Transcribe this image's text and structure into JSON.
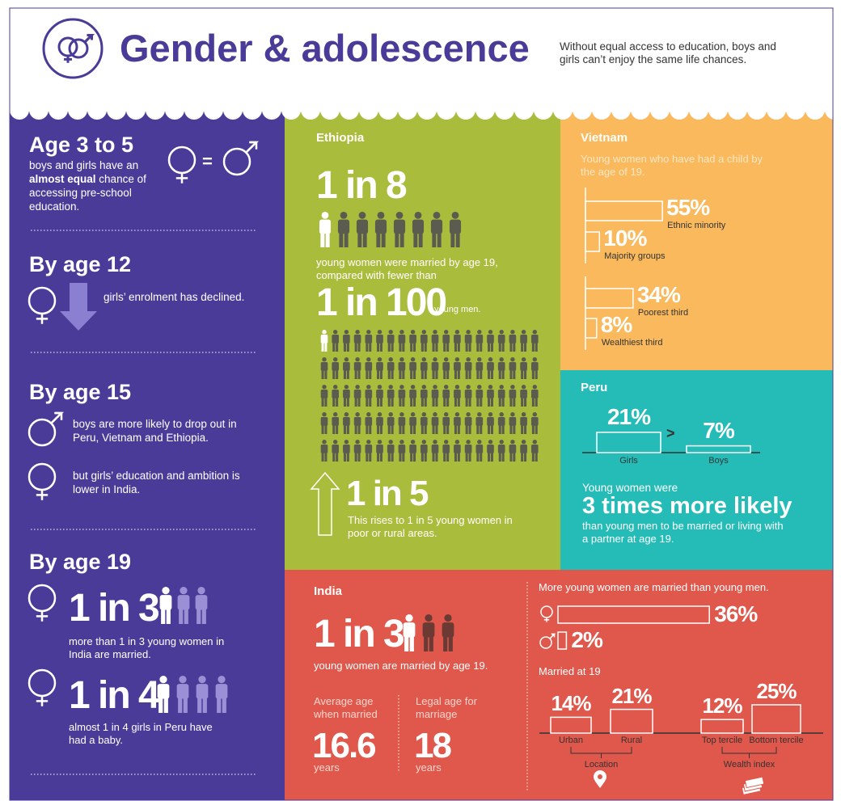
{
  "header": {
    "title": "Gender & adolescence",
    "subtitle": "Without equal access to education, boys and girls can’t enjoy the same life chances."
  },
  "left": {
    "age3": {
      "heading": "Age 3 to 5",
      "text_pre": "boys and girls have an",
      "text_bold": "almost equal",
      "text_post": "chance of accessing pre-school education.",
      "equals": "="
    },
    "age12": {
      "heading": "By age 12",
      "text": "girls’ enrolment has declined."
    },
    "age15": {
      "heading": "By age 15",
      "boys": "boys are more likely to drop out in Peru, Vietnam and Ethiopia.",
      "girls": "but girls’ education and ambition is lower in India."
    },
    "age19": {
      "heading": "By age 19",
      "married": {
        "label": "1 in 3",
        "n": 3,
        "text": "more than 1 in 3 young women in India are married."
      },
      "baby": {
        "label": "1 in 4",
        "n": 4,
        "text": "almost 1 in 4 girls in Peru have had a baby."
      }
    }
  },
  "ethiopia": {
    "title": "Ethiopia",
    "women": {
      "label": "1 in 8",
      "n": 8,
      "text": "young women were married by age 19, compared with fewer than"
    },
    "men": {
      "label": "1 in 100",
      "n": 100,
      "text": "young men."
    },
    "rural": {
      "label": "1 in 5",
      "text": "This rises to 1 in 5 young women in poor or rural areas."
    }
  },
  "vietnam": {
    "title": "Vietnam",
    "subtitle": "Young women who have had a child by the age of 19.",
    "bars": [
      {
        "value": 55,
        "label": "55%",
        "name": "Ethnic minority"
      },
      {
        "value": 10,
        "label": "10%",
        "name": "Majority groups"
      },
      {
        "value": 34,
        "label": "34%",
        "name": "Poorest third"
      },
      {
        "value": 8,
        "label": "8%",
        "name": "Wealthiest third"
      }
    ]
  },
  "peru": {
    "title": "Peru",
    "bars": [
      {
        "value": 21,
        "label": "21%",
        "name": "Girls"
      },
      {
        "value": 7,
        "label": "7%",
        "name": "Boys"
      }
    ],
    "comparison": ">",
    "text_pre": "Young women were",
    "highlight": "3 times more likely",
    "text_post": "than young men to be married or living with a partner at age 19."
  },
  "india": {
    "title": "India",
    "married": {
      "label": "1 in 3",
      "n": 3,
      "text": "young women are married by age 19."
    },
    "avg_age": {
      "caption": "Average age when married",
      "value": 16.6,
      "unit": "years"
    },
    "legal_age": {
      "caption": "Legal age for marriage",
      "value": 18,
      "unit": "years"
    },
    "gender_caption": "More young women are married than young men.",
    "gender_bars": [
      {
        "value": 36,
        "label": "36%"
      },
      {
        "value": 2,
        "label": "2%"
      }
    ],
    "married_caption": "Married at 19",
    "groups": [
      {
        "name": "Location",
        "bars": [
          {
            "value": 14,
            "label": "14%",
            "name": "Urban"
          },
          {
            "value": 21,
            "label": "21%",
            "name": "Rural"
          }
        ]
      },
      {
        "name": "Wealth index",
        "bars": [
          {
            "value": 12,
            "label": "12%",
            "name": "Top tercile"
          },
          {
            "value": 25,
            "label": "25%",
            "name": "Bottom tercile"
          }
        ]
      }
    ]
  }
}
